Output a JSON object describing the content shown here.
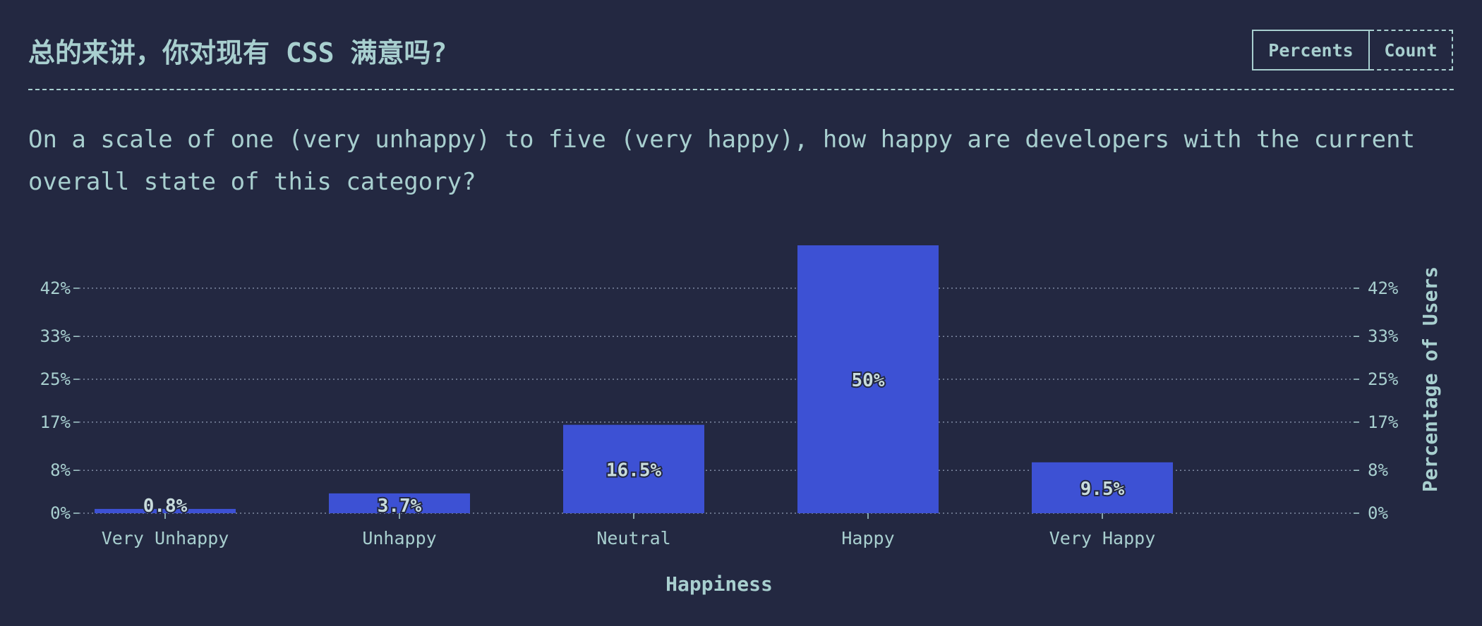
{
  "title": "总的来讲，你对现有 CSS 满意吗?",
  "tabs": {
    "percents": "Percents",
    "count": "Count"
  },
  "description": "On a scale of one (very unhappy) to five (very happy), how happy are developers with the current overall state of this category?",
  "colors": {
    "background": "#232841",
    "text": "#a8cfcf",
    "bar": "#3d51d4",
    "grid": "#7f8aa3"
  },
  "chart_data": {
    "type": "bar",
    "categories": [
      "Very Unhappy",
      "Unhappy",
      "Neutral",
      "Happy",
      "Very Happy"
    ],
    "values": [
      0.8,
      3.7,
      16.5,
      50,
      9.5
    ],
    "value_labels": [
      "0.8%",
      "3.7%",
      "16.5%",
      "50%",
      "9.5%"
    ],
    "xlabel": "Happiness",
    "ylabel": "Percentage of Users",
    "yticks": [
      0,
      8,
      17,
      25,
      33,
      42
    ],
    "ytick_labels": [
      "0%",
      "8%",
      "17%",
      "25%",
      "33%",
      "42%"
    ],
    "ylim": [
      0,
      50
    ],
    "grid": true,
    "grid_style": "dotted"
  }
}
